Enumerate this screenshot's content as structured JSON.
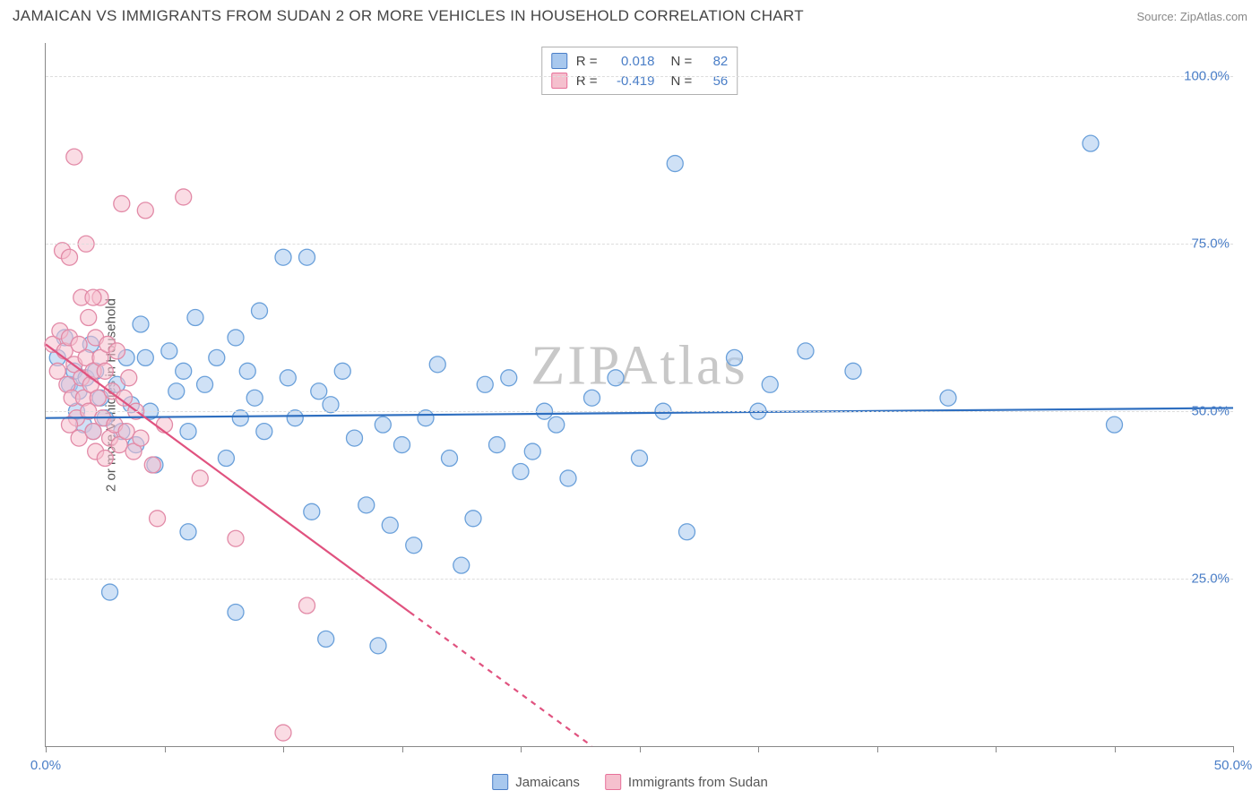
{
  "header": {
    "title": "JAMAICAN VS IMMIGRANTS FROM SUDAN 2 OR MORE VEHICLES IN HOUSEHOLD CORRELATION CHART",
    "source": "Source: ZipAtlas.com"
  },
  "chart": {
    "type": "scatter",
    "ylabel": "2 or more Vehicles in Household",
    "watermark": "ZIPAtlas",
    "xlim": [
      0,
      50
    ],
    "ylim": [
      0,
      105
    ],
    "xticks": [
      0,
      5,
      10,
      15,
      20,
      25,
      30,
      35,
      40,
      45,
      50
    ],
    "xtick_labels": {
      "0": "0.0%",
      "50": "50.0%"
    },
    "ytick_lines": [
      25,
      50,
      75,
      100
    ],
    "ytick_labels": {
      "25": "25.0%",
      "50": "50.0%",
      "75": "75.0%",
      "100": "100.0%"
    },
    "background_color": "#ffffff",
    "grid_color": "#dddddd",
    "axis_color": "#888888",
    "tick_label_color": "#4a7ec7",
    "marker_radius": 9,
    "marker_stroke_width": 1.3,
    "stats_box": {
      "rows": [
        {
          "swatch_fill": "#a8c8ee",
          "swatch_stroke": "#4a7ec7",
          "r_label": "R =",
          "r_value": "0.018",
          "n_label": "N =",
          "n_value": "82"
        },
        {
          "swatch_fill": "#f5c0ce",
          "swatch_stroke": "#e77099",
          "r_label": "R =",
          "r_value": "-0.419",
          "n_label": "N =",
          "n_value": "56"
        }
      ]
    },
    "bottom_legend": [
      {
        "swatch_fill": "#a8c8ee",
        "swatch_stroke": "#4a7ec7",
        "label": "Jamaicans"
      },
      {
        "swatch_fill": "#f5c0ce",
        "swatch_stroke": "#e77099",
        "label": "Immigrants from Sudan"
      }
    ],
    "series": [
      {
        "name": "Jamaicans",
        "marker_fill": "rgba(168,200,238,0.55)",
        "marker_stroke": "#6aa0da",
        "regression": {
          "x1": 0,
          "y1": 49,
          "x2": 50,
          "y2": 50.5,
          "color": "#2f6fc0",
          "width": 2.2,
          "dash": "none"
        },
        "points": [
          [
            0.5,
            58
          ],
          [
            0.8,
            61
          ],
          [
            1.0,
            54
          ],
          [
            1.2,
            56
          ],
          [
            1.3,
            50
          ],
          [
            1.4,
            53
          ],
          [
            1.6,
            48
          ],
          [
            1.7,
            55
          ],
          [
            1.9,
            60
          ],
          [
            2.0,
            47
          ],
          [
            2.1,
            56
          ],
          [
            2.3,
            52
          ],
          [
            2.5,
            49
          ],
          [
            2.7,
            23
          ],
          [
            3.0,
            54
          ],
          [
            3.2,
            47
          ],
          [
            3.4,
            58
          ],
          [
            3.6,
            51
          ],
          [
            3.8,
            45
          ],
          [
            4.0,
            63
          ],
          [
            4.2,
            58
          ],
          [
            4.4,
            50
          ],
          [
            4.6,
            42
          ],
          [
            5.2,
            59
          ],
          [
            5.5,
            53
          ],
          [
            5.8,
            56
          ],
          [
            6.0,
            47
          ],
          [
            6.3,
            64
          ],
          [
            6.7,
            54
          ],
          [
            7.2,
            58
          ],
          [
            7.6,
            43
          ],
          [
            8.0,
            20
          ],
          [
            8.2,
            49
          ],
          [
            8.5,
            56
          ],
          [
            8.8,
            52
          ],
          [
            9.0,
            65
          ],
          [
            9.2,
            47
          ],
          [
            10.0,
            73
          ],
          [
            10.2,
            55
          ],
          [
            10.5,
            49
          ],
          [
            11.0,
            73
          ],
          [
            11.2,
            35
          ],
          [
            11.5,
            53
          ],
          [
            11.8,
            16
          ],
          [
            12.0,
            51
          ],
          [
            12.5,
            56
          ],
          [
            13.0,
            46
          ],
          [
            13.5,
            36
          ],
          [
            14.0,
            15
          ],
          [
            14.2,
            48
          ],
          [
            14.5,
            33
          ],
          [
            15.0,
            45
          ],
          [
            15.5,
            30
          ],
          [
            16.0,
            49
          ],
          [
            16.5,
            57
          ],
          [
            17.0,
            43
          ],
          [
            17.5,
            27
          ],
          [
            18.0,
            34
          ],
          [
            18.5,
            54
          ],
          [
            19.0,
            45
          ],
          [
            19.5,
            55
          ],
          [
            20.0,
            41
          ],
          [
            20.5,
            44
          ],
          [
            21.0,
            50
          ],
          [
            21.5,
            48
          ],
          [
            22.0,
            40
          ],
          [
            23.0,
            52
          ],
          [
            24.0,
            55
          ],
          [
            25.0,
            43
          ],
          [
            26.0,
            50
          ],
          [
            26.5,
            87
          ],
          [
            27.0,
            32
          ],
          [
            29.0,
            58
          ],
          [
            30.0,
            50
          ],
          [
            30.5,
            54
          ],
          [
            32.0,
            59
          ],
          [
            34.0,
            56
          ],
          [
            38.0,
            52
          ],
          [
            44.0,
            90
          ],
          [
            45.0,
            48
          ],
          [
            6.0,
            32
          ],
          [
            8.0,
            61
          ]
        ]
      },
      {
        "name": "Immigrants from Sudan",
        "marker_fill": "rgba(245,192,206,0.55)",
        "marker_stroke": "#e28aa7",
        "regression": {
          "x1": 0,
          "y1": 60,
          "x2": 23,
          "y2": 0,
          "color": "#e0527f",
          "width": 2.2,
          "dash": "above20"
        },
        "points": [
          [
            0.3,
            60
          ],
          [
            0.5,
            56
          ],
          [
            0.6,
            62
          ],
          [
            0.7,
            74
          ],
          [
            0.8,
            59
          ],
          [
            0.9,
            54
          ],
          [
            1.0,
            61
          ],
          [
            1.0,
            73
          ],
          [
            1.1,
            52
          ],
          [
            1.2,
            57
          ],
          [
            1.2,
            88
          ],
          [
            1.3,
            49
          ],
          [
            1.4,
            60
          ],
          [
            1.4,
            46
          ],
          [
            1.5,
            55
          ],
          [
            1.5,
            67
          ],
          [
            1.6,
            52
          ],
          [
            1.7,
            58
          ],
          [
            1.7,
            75
          ],
          [
            1.8,
            50
          ],
          [
            1.8,
            64
          ],
          [
            1.9,
            54
          ],
          [
            2.0,
            56
          ],
          [
            2.0,
            47
          ],
          [
            2.1,
            61
          ],
          [
            2.1,
            44
          ],
          [
            2.2,
            52
          ],
          [
            2.3,
            58
          ],
          [
            2.3,
            67
          ],
          [
            2.4,
            49
          ],
          [
            2.5,
            56
          ],
          [
            2.5,
            43
          ],
          [
            2.6,
            60
          ],
          [
            2.7,
            46
          ],
          [
            2.8,
            53
          ],
          [
            2.9,
            48
          ],
          [
            3.0,
            59
          ],
          [
            3.1,
            45
          ],
          [
            3.2,
            81
          ],
          [
            3.3,
            52
          ],
          [
            3.4,
            47
          ],
          [
            3.5,
            55
          ],
          [
            3.7,
            44
          ],
          [
            3.8,
            50
          ],
          [
            4.0,
            46
          ],
          [
            4.2,
            80
          ],
          [
            4.5,
            42
          ],
          [
            4.7,
            34
          ],
          [
            5.0,
            48
          ],
          [
            5.8,
            82
          ],
          [
            6.5,
            40
          ],
          [
            8.0,
            31
          ],
          [
            10.0,
            2
          ],
          [
            11.0,
            21
          ],
          [
            2.0,
            67
          ],
          [
            1.0,
            48
          ]
        ]
      }
    ]
  }
}
